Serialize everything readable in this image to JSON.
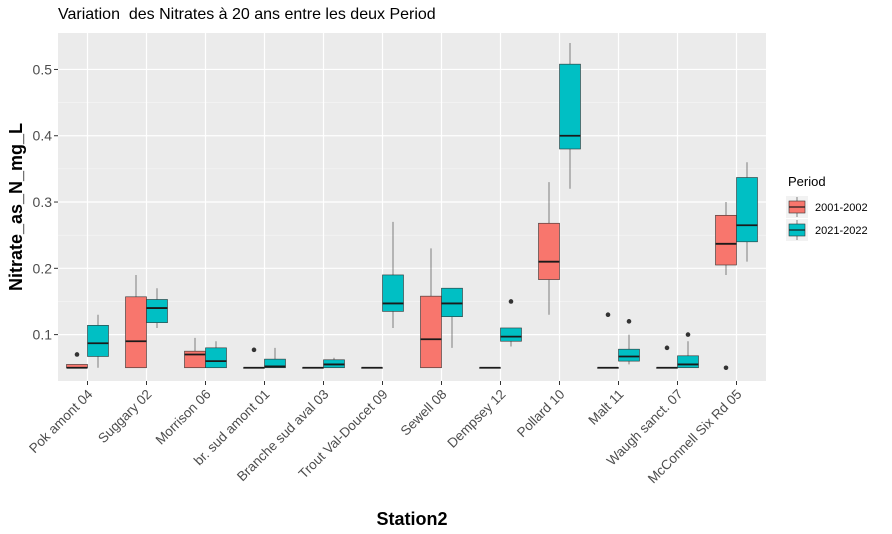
{
  "chart_data": {
    "type": "boxplot",
    "title": "Variation  des Nitrates à 20 ans entre les deux Period",
    "xlabel": "Station2",
    "ylabel": "Nitrate_as_N_mg_L",
    "ylim": [
      0.03,
      0.555
    ],
    "yticks": [
      0.1,
      0.2,
      0.3,
      0.4,
      0.5
    ],
    "ytick_labels": [
      "0.1",
      "0.2",
      "0.3",
      "0.4",
      "0.5"
    ],
    "grid": true,
    "legend": {
      "title": "Period",
      "placement": "right"
    },
    "categories": [
      "Pok amont 04",
      "Suggary 02",
      "Morrison 06",
      "br. sud amont 01",
      "Branche sud aval 03",
      "Trout Val-Doucet 09",
      "Sewell 08",
      "Dempsey 12",
      "Pollard 10",
      "Malt 11",
      "Waugh sanct. 07",
      "McConnell Six Rd 05"
    ],
    "series": [
      {
        "name": "2001-2002",
        "color": "#F8766D",
        "boxes": [
          {
            "category": "Pok amont 04",
            "min": 0.05,
            "q1": 0.05,
            "median": 0.05,
            "q3": 0.055,
            "max": 0.055,
            "outliers": [
              0.07
            ]
          },
          {
            "category": "Suggary 02",
            "min": 0.05,
            "q1": 0.05,
            "median": 0.09,
            "q3": 0.157,
            "max": 0.19,
            "outliers": []
          },
          {
            "category": "Morrison 06",
            "min": 0.05,
            "q1": 0.05,
            "median": 0.07,
            "q3": 0.075,
            "max": 0.095,
            "outliers": []
          },
          {
            "category": "br. sud amont 01",
            "min": 0.05,
            "q1": 0.05,
            "median": 0.05,
            "q3": 0.05,
            "max": 0.05,
            "outliers": [
              0.077
            ]
          },
          {
            "category": "Branche sud aval 03",
            "min": 0.05,
            "q1": 0.05,
            "median": 0.05,
            "q3": 0.05,
            "max": 0.05,
            "outliers": []
          },
          {
            "category": "Trout Val-Doucet 09",
            "min": 0.05,
            "q1": 0.05,
            "median": 0.05,
            "q3": 0.05,
            "max": 0.05,
            "outliers": []
          },
          {
            "category": "Sewell 08",
            "min": 0.05,
            "q1": 0.05,
            "median": 0.093,
            "q3": 0.158,
            "max": 0.23,
            "outliers": []
          },
          {
            "category": "Dempsey 12",
            "min": 0.05,
            "q1": 0.05,
            "median": 0.05,
            "q3": 0.05,
            "max": 0.05,
            "outliers": []
          },
          {
            "category": "Pollard 10",
            "min": 0.13,
            "q1": 0.183,
            "median": 0.21,
            "q3": 0.268,
            "max": 0.33,
            "outliers": []
          },
          {
            "category": "Malt 11",
            "min": 0.05,
            "q1": 0.05,
            "median": 0.05,
            "q3": 0.05,
            "max": 0.05,
            "outliers": [
              0.13
            ]
          },
          {
            "category": "Waugh sanct. 07",
            "min": 0.05,
            "q1": 0.05,
            "median": 0.05,
            "q3": 0.05,
            "max": 0.05,
            "outliers": [
              0.08
            ]
          },
          {
            "category": "McConnell Six Rd 05",
            "min": 0.19,
            "q1": 0.205,
            "median": 0.237,
            "q3": 0.28,
            "max": 0.3,
            "outliers": [
              0.05
            ]
          }
        ]
      },
      {
        "name": "2021-2022",
        "color": "#00BFC4",
        "boxes": [
          {
            "category": "Pok amont 04",
            "min": 0.05,
            "q1": 0.067,
            "median": 0.087,
            "q3": 0.114,
            "max": 0.13,
            "outliers": []
          },
          {
            "category": "Suggary 02",
            "min": 0.11,
            "q1": 0.118,
            "median": 0.14,
            "q3": 0.153,
            "max": 0.17,
            "outliers": []
          },
          {
            "category": "Morrison 06",
            "min": 0.05,
            "q1": 0.05,
            "median": 0.06,
            "q3": 0.08,
            "max": 0.09,
            "outliers": []
          },
          {
            "category": "br. sud amont 01",
            "min": 0.05,
            "q1": 0.05,
            "median": 0.052,
            "q3": 0.063,
            "max": 0.08,
            "outliers": []
          },
          {
            "category": "Branche sud aval 03",
            "min": 0.05,
            "q1": 0.05,
            "median": 0.055,
            "q3": 0.062,
            "max": 0.065,
            "outliers": []
          },
          {
            "category": "Trout Val-Doucet 09",
            "min": 0.11,
            "q1": 0.135,
            "median": 0.147,
            "q3": 0.19,
            "max": 0.27,
            "outliers": []
          },
          {
            "category": "Sewell 08",
            "min": 0.08,
            "q1": 0.127,
            "median": 0.147,
            "q3": 0.17,
            "max": 0.17,
            "outliers": []
          },
          {
            "category": "Dempsey 12",
            "min": 0.082,
            "q1": 0.09,
            "median": 0.097,
            "q3": 0.11,
            "max": 0.11,
            "outliers": [
              0.15
            ]
          },
          {
            "category": "Pollard 10",
            "min": 0.32,
            "q1": 0.38,
            "median": 0.4,
            "q3": 0.508,
            "max": 0.54,
            "outliers": []
          },
          {
            "category": "Malt 11",
            "min": 0.055,
            "q1": 0.06,
            "median": 0.067,
            "q3": 0.078,
            "max": 0.1,
            "outliers": [
              0.12
            ]
          },
          {
            "category": "Waugh sanct. 07",
            "min": 0.05,
            "q1": 0.05,
            "median": 0.055,
            "q3": 0.068,
            "max": 0.09,
            "outliers": [
              0.1
            ]
          },
          {
            "category": "McConnell Six Rd 05",
            "min": 0.21,
            "q1": 0.24,
            "median": 0.265,
            "q3": 0.337,
            "max": 0.36,
            "outliers": []
          }
        ]
      }
    ]
  }
}
